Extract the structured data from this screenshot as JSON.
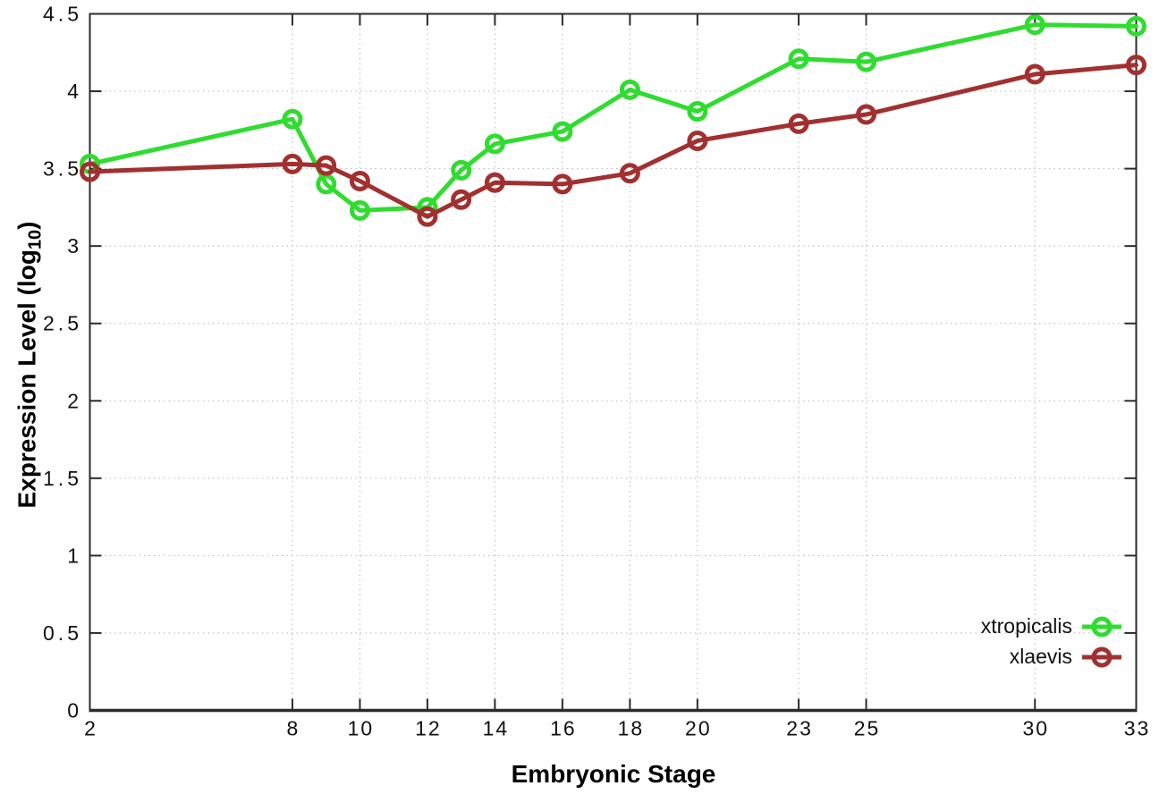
{
  "chart_data": {
    "type": "line",
    "title": "",
    "xlabel": "Embryonic Stage",
    "ylabel": "Expression Level (log10)",
    "ylabel_parts": {
      "main": "Expression Level (log",
      "sub": "10",
      "close": ")"
    },
    "xlim": [
      2,
      33
    ],
    "ylim": [
      0,
      4.5
    ],
    "grid": true,
    "legend_position": "inside-bottom-right",
    "x_ticks": [
      2,
      8,
      10,
      12,
      14,
      16,
      18,
      20,
      23,
      25,
      30,
      33
    ],
    "x_tick_labels": [
      "2",
      "8",
      "10",
      "12",
      "14",
      "16",
      "18",
      "20",
      "23",
      "25",
      "30",
      "33"
    ],
    "y_ticks": [
      0,
      0.5,
      1,
      1.5,
      2,
      2.5,
      3,
      3.5,
      4,
      4.5
    ],
    "y_tick_labels": [
      "0",
      "0.5",
      "1",
      "1.5",
      "2",
      "2.5",
      "3",
      "3.5",
      "4",
      "4.5"
    ],
    "x": [
      2,
      8,
      9,
      10,
      12,
      13,
      14,
      16,
      18,
      20,
      23,
      25,
      30,
      33
    ],
    "series": [
      {
        "name": "xtropicalis",
        "color": "#30dc30",
        "marker": "open-circle",
        "values": [
          3.53,
          3.82,
          3.4,
          3.23,
          3.25,
          3.49,
          3.66,
          3.74,
          4.01,
          3.87,
          4.21,
          4.19,
          4.43,
          4.42
        ]
      },
      {
        "name": "xlaevis",
        "color": "#a23030",
        "marker": "open-circle",
        "values": [
          3.48,
          3.53,
          3.52,
          3.42,
          3.19,
          3.3,
          3.41,
          3.4,
          3.47,
          3.68,
          3.79,
          3.85,
          4.11,
          4.17
        ]
      }
    ],
    "colors": {
      "background": "#ffffff",
      "axis": "#2b2b2b",
      "grid": "#b5b5b5",
      "text": "#111111"
    }
  }
}
